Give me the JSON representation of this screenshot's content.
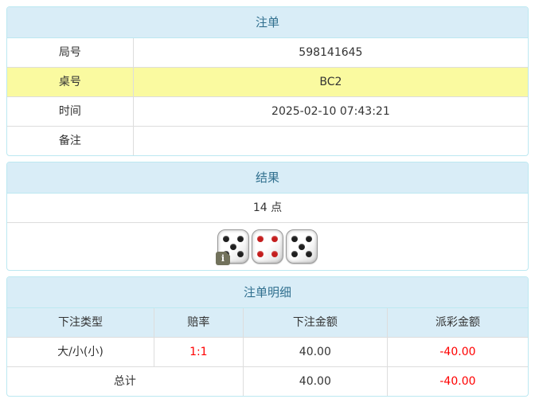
{
  "colors": {
    "heading_bg": "#d9edf7",
    "heading_text": "#31708f",
    "panel_border": "#bce8f1",
    "cell_border": "#dddddd",
    "highlight_row": "#fafaa0",
    "negative": "#ff0000",
    "text": "#333333"
  },
  "panels": {
    "bet": {
      "title": "注单",
      "rows": [
        {
          "label": "局号",
          "value": "598141645"
        },
        {
          "label": "桌号",
          "value": "BC2"
        },
        {
          "label": "时间",
          "value": "2025-02-10 07:43:21"
        },
        {
          "label": "备注",
          "value": ""
        }
      ]
    },
    "result": {
      "title": "结果",
      "points": "14 点",
      "info_icon": "i",
      "dice": [
        {
          "pips": 5,
          "color": "#1f1f1f"
        },
        {
          "pips": 4,
          "color": "#c41e1e"
        },
        {
          "pips": 5,
          "color": "#1f1f1f"
        }
      ]
    },
    "detail": {
      "title": "注单明细",
      "columns": [
        "下注类型",
        "赔率",
        "下注金额",
        "派彩金额"
      ],
      "rows": [
        {
          "type": "大/小(小)",
          "odds": "1:1",
          "bet": "40.00",
          "payout": "-40.00"
        }
      ],
      "total": {
        "label": "总计",
        "bet": "40.00",
        "payout": "-40.00"
      }
    }
  }
}
